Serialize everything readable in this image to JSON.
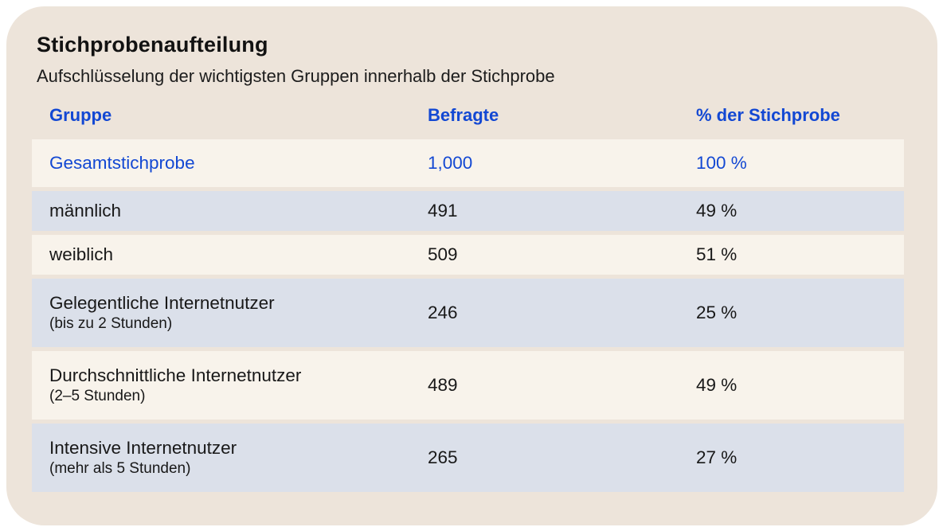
{
  "card": {
    "title": "Stichprobenaufteilung",
    "subtitle": "Aufschlüsselung der wichtigsten Gruppen innerhalb der Stichprobe"
  },
  "table": {
    "columns": [
      "Gruppe",
      "Befragte",
      "% der Stichprobe"
    ],
    "rows": [
      {
        "group": "Gesamtstichprobe",
        "detail": "",
        "respondents": "1,000",
        "percent": "100 %",
        "emphasis": true
      },
      {
        "group": "männlich",
        "detail": "",
        "respondents": "491",
        "percent": "49 %",
        "emphasis": false
      },
      {
        "group": "weiblich",
        "detail": "",
        "respondents": "509",
        "percent": "51 %",
        "emphasis": false
      },
      {
        "group": "Gelegentliche Internetnutzer",
        "detail": "(bis zu 2 Stunden)",
        "respondents": "246",
        "percent": "25 %",
        "emphasis": false
      },
      {
        "group": "Durchschnittliche Internetnutzer",
        "detail": "(2–5 Stunden)",
        "respondents": "489",
        "percent": "49 %",
        "emphasis": false
      },
      {
        "group": "Intensive Internetnutzer",
        "detail": "(mehr als 5 Stunden)",
        "respondents": "265",
        "percent": "27 %",
        "emphasis": false
      }
    ]
  },
  "colors": {
    "card_background": "#ede4da",
    "row_light": "#f8f3eb",
    "row_dark": "#dbe0ea",
    "accent_blue": "#1348d3",
    "text": "#181818",
    "page_background": "#ffffff"
  },
  "chart_data": {
    "type": "table",
    "title": "Stichprobenaufteilung",
    "subtitle": "Aufschlüsselung der wichtigsten Gruppen innerhalb der Stichprobe",
    "columns": [
      "Gruppe",
      "Befragte",
      "% der Stichprobe"
    ],
    "categories": [
      "Gesamtstichprobe",
      "männlich",
      "weiblich",
      "Gelegentliche Internetnutzer (bis zu 2 Stunden)",
      "Durchschnittliche Internetnutzer (2–5 Stunden)",
      "Intensive Internetnutzer (mehr als 5 Stunden)"
    ],
    "series": [
      {
        "name": "Befragte",
        "values": [
          1000,
          491,
          509,
          246,
          489,
          265
        ]
      },
      {
        "name": "% der Stichprobe",
        "values": [
          100,
          49,
          51,
          25,
          49,
          27
        ]
      }
    ]
  }
}
